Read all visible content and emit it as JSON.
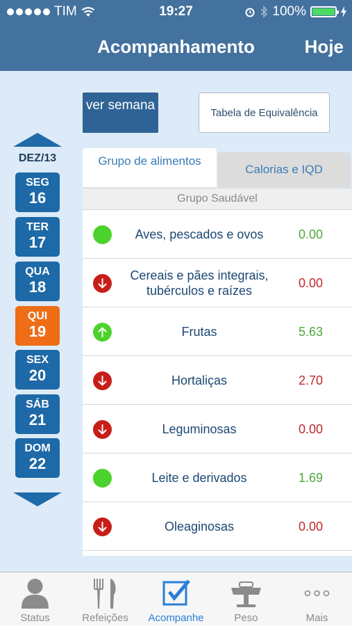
{
  "status_bar": {
    "carrier": "TIM",
    "time": "19:27",
    "battery": "100%"
  },
  "nav": {
    "title": "Acompanhamento",
    "right_button": "Hoje"
  },
  "buttons": {
    "week": "ver semana",
    "equivalence": "Tabela de Equivalência"
  },
  "calendar": {
    "month": "DEZ/13",
    "days": [
      {
        "name": "SEG",
        "num": "16"
      },
      {
        "name": "TER",
        "num": "17"
      },
      {
        "name": "QUA",
        "num": "18"
      },
      {
        "name": "QUI",
        "num": "19"
      },
      {
        "name": "SEX",
        "num": "20"
      },
      {
        "name": "SÁB",
        "num": "21"
      },
      {
        "name": "DOM",
        "num": "22"
      }
    ],
    "selected_day": "QUI"
  },
  "tabs": [
    {
      "label": "Grupo de alimentos",
      "active": true
    },
    {
      "label": "Calorias e IQD",
      "active": false
    }
  ],
  "group_header": "Grupo Saudável",
  "food_groups": [
    {
      "name": "Aves, pescados e ovos",
      "value": "0.00",
      "status": "green-dot-icon",
      "tone": "good"
    },
    {
      "name": "Cereais e pães integrais, tubérculos e raízes",
      "value": "0.00",
      "status": "down-arrow-icon",
      "tone": "bad"
    },
    {
      "name": "Frutas",
      "value": "5.63",
      "status": "up-arrow-icon",
      "tone": "good"
    },
    {
      "name": "Hortaliças",
      "value": "2.70",
      "status": "down-arrow-icon",
      "tone": "bad"
    },
    {
      "name": "Leguminosas",
      "value": "0.00",
      "status": "down-arrow-icon",
      "tone": "bad"
    },
    {
      "name": "Leite e derivados",
      "value": "1.69",
      "status": "green-dot-icon",
      "tone": "good"
    },
    {
      "name": "Oleaginosas",
      "value": "0.00",
      "status": "down-arrow-icon",
      "tone": "bad"
    }
  ],
  "tabbar": [
    {
      "label": "Status",
      "icon": "person-icon",
      "active": false
    },
    {
      "label": "Refeições",
      "icon": "fork-knife-icon",
      "active": false
    },
    {
      "label": "Acompanhe",
      "icon": "checkbox-icon",
      "active": true
    },
    {
      "label": "Peso",
      "icon": "scale-icon",
      "active": false
    },
    {
      "label": "Mais",
      "icon": "more-icon",
      "active": false
    }
  ],
  "colors": {
    "nav": "#44729f",
    "day": "#1e69a7",
    "day_active": "#ef6d16",
    "good": "#4fa63a",
    "bad": "#c12b2b",
    "tab_active": "#2a7fd8"
  }
}
